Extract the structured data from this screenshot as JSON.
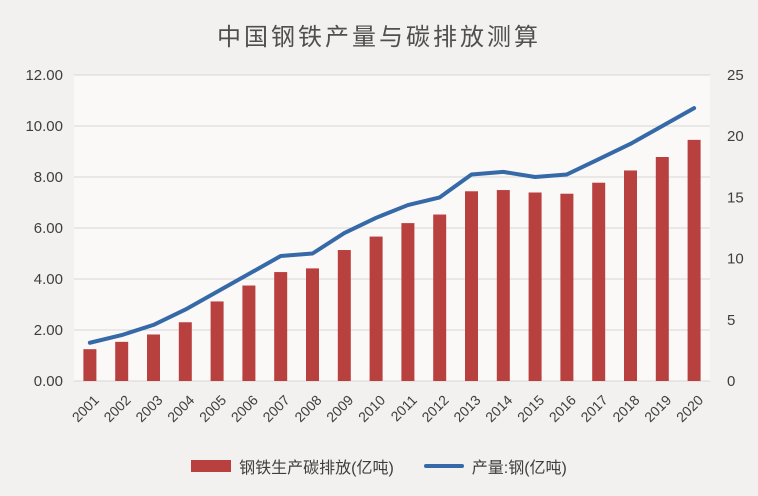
{
  "title": "中国钢铁产量与碳排放测算",
  "colors": {
    "bar": "#b8403e",
    "line": "#3569a8",
    "grid": "#d9d7d6",
    "axis_text": "#3f3e3c",
    "title_text": "#504f4d",
    "background": "#f3f1f0",
    "plot_background": "#faf9f8"
  },
  "chart_data": {
    "type": "combo-bar-line",
    "title": "中国钢铁产量与碳排放测算",
    "categories": [
      "2001",
      "2002",
      "2003",
      "2004",
      "2005",
      "2006",
      "2007",
      "2008",
      "2009",
      "2010",
      "2011",
      "2012",
      "2013",
      "2014",
      "2015",
      "2016",
      "2017",
      "2018",
      "2019",
      "2020"
    ],
    "series": [
      {
        "name": "钢铁生产碳排放(亿吨)",
        "type": "bar",
        "axis": "right",
        "color": "#b8403e",
        "values": [
          2.6,
          3.2,
          3.8,
          4.8,
          6.5,
          7.8,
          8.9,
          9.2,
          10.7,
          11.8,
          12.9,
          13.6,
          15.5,
          15.6,
          15.4,
          15.3,
          16.2,
          17.2,
          18.3,
          19.7
        ]
      },
      {
        "name": "产量:钢(亿吨)",
        "type": "line",
        "axis": "left",
        "color": "#3569a8",
        "values": [
          1.5,
          1.8,
          2.2,
          2.8,
          3.5,
          4.2,
          4.9,
          5.0,
          5.8,
          6.4,
          6.9,
          7.2,
          8.1,
          8.2,
          8.0,
          8.1,
          8.7,
          9.3,
          10.0,
          10.7
        ]
      }
    ],
    "left_axis": {
      "min": 0,
      "max": 12,
      "step": 2,
      "tick_labels": [
        "0.00",
        "2.00",
        "4.00",
        "6.00",
        "8.00",
        "10.00",
        "12.00"
      ]
    },
    "right_axis": {
      "min": 0,
      "max": 25,
      "step": 5,
      "tick_labels": [
        "0",
        "5",
        "10",
        "15",
        "20",
        "25"
      ]
    },
    "grid": true,
    "legend_position": "bottom",
    "x_tick_rotation": -45
  }
}
